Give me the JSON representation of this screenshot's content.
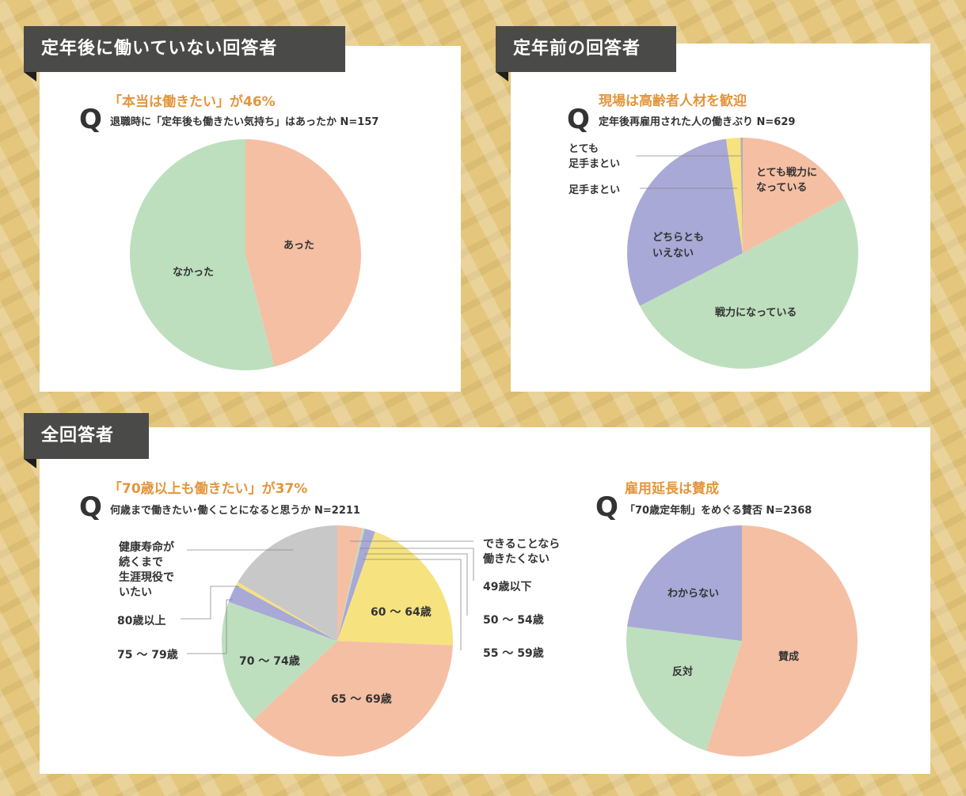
{
  "sections": {
    "not_working": "定年後に働いていない回答者",
    "before_retire": "定年前の回答者",
    "all": "全回答者"
  },
  "charts": {
    "c1": {
      "headline": "「本当は働きたい」が46%",
      "question": "退職時に「定年後も働きたい気持ち」はあったか N=157"
    },
    "c2": {
      "headline": "現場は高齢者人材を歓迎",
      "question": "定年後再雇用された人の働きぶり N=629"
    },
    "c3": {
      "headline": "「70歳以上も働きたい」が37%",
      "question": "何歳まで働きたい･働くことになると思うか N=2211"
    },
    "c4": {
      "headline": "雇用延長は賛成",
      "question": "「70歳定年制」をめぐる賛否 N=2368"
    }
  },
  "q_letter": "Q",
  "chart_data": [
    {
      "type": "pie",
      "title": "「本当は働きたい」が46%",
      "slices": [
        {
          "label": "あった",
          "value": 46,
          "color": "#f5bfa4"
        },
        {
          "label": "なかった",
          "value": 54,
          "color": "#bddfbe"
        }
      ]
    },
    {
      "type": "pie",
      "title": "現場は高齢者人材を歓迎",
      "slices": [
        {
          "label": "とても戦力になっている",
          "value": 17,
          "color": "#f5bfa4"
        },
        {
          "label": "戦力になっている",
          "value": 50,
          "color": "#bddfbe"
        },
        {
          "label": "どちらともいえない",
          "value": 30,
          "color": "#a8a9d6"
        },
        {
          "label": "足手まとい",
          "value": 2,
          "color": "#f6e27f"
        },
        {
          "label": "とても足手まとい",
          "value": 0.3,
          "color": "#b0b0b0"
        }
      ]
    },
    {
      "type": "pie",
      "title": "「70歳以上も働きたい」が37%",
      "slices": [
        {
          "label": "できることなら働きたくない",
          "value": 3.5,
          "color": "#f5bfa4"
        },
        {
          "label": "49歳以下",
          "value": 0.3,
          "color": "#bddfbe"
        },
        {
          "label": "50～54歳",
          "value": 1.5,
          "color": "#a8a9d6"
        },
        {
          "label": "55～59歳",
          "value": 0.3,
          "color": "#f6e27f"
        },
        {
          "label": "60～64歳",
          "value": 20,
          "color": "#f6e27f"
        },
        {
          "label": "65～69歳",
          "value": 37.4,
          "color": "#f5bfa4"
        },
        {
          "label": "70～74歳",
          "value": 17.5,
          "color": "#bddfbe"
        },
        {
          "label": "75～79歳",
          "value": 2.5,
          "color": "#a8a9d6"
        },
        {
          "label": "80歳以上",
          "value": 0.5,
          "color": "#f6e27f"
        },
        {
          "label": "健康寿命が続くまで生涯現役でいたい",
          "value": 16.5,
          "color": "#c8c8c8"
        }
      ]
    },
    {
      "type": "pie",
      "title": "雇用延長は賛成",
      "slices": [
        {
          "label": "賛成",
          "value": 55,
          "color": "#f5bfa4"
        },
        {
          "label": "反対",
          "value": 22,
          "color": "#bddfbe"
        },
        {
          "label": "わからない",
          "value": 23,
          "color": "#a8a9d6"
        }
      ]
    }
  ],
  "labels": {
    "c1": {
      "s0": "あった",
      "s1": "なかった"
    },
    "c2": {
      "s0a": "とても戦力に",
      "s0b": "なっている",
      "s1": "戦力になっている",
      "s2a": "どちらとも",
      "s2b": "いえない",
      "s3": "足手まとい",
      "s4a": "とても",
      "s4b": "足手まとい"
    },
    "c3": {
      "s0a": "できることなら",
      "s0b": "働きたくない",
      "s1": "49歳以下",
      "s2": "50 ～ 54歳",
      "s3": "55 ～ 59歳",
      "s4": "60 ～ 64歳",
      "s5": "65 ～ 69歳",
      "s6": "70 ～ 74歳",
      "s7": "75 ～ 79歳",
      "s8": "80歳以上",
      "s9a": "健康寿命が",
      "s9b": "続くまで",
      "s9c": "生涯現役で",
      "s9d": "いたい"
    },
    "c4": {
      "s0": "賛成",
      "s1": "反対",
      "s2": "わからない"
    }
  }
}
